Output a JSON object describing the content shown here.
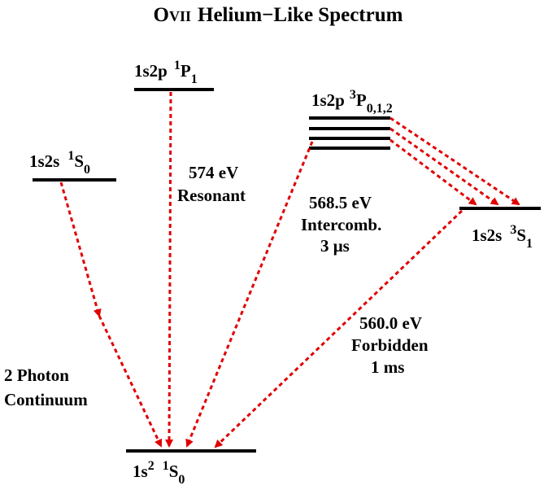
{
  "title": {
    "element": "O",
    "stage": "VII",
    "rest": "Helium−Like Spectrum"
  },
  "levels": [
    {
      "config": "1s2p",
      "mult": "1",
      "term": "P",
      "j": "1"
    },
    {
      "config": "1s2p",
      "mult": "3",
      "term": "P",
      "j": "0,1,2"
    },
    {
      "config": "1s2s",
      "mult": "1",
      "term": "S",
      "j": "0"
    },
    {
      "config": "1s2s",
      "mult": "3",
      "term": "S",
      "j": "1"
    },
    {
      "config": "1s",
      "power": "2",
      "mult": "1",
      "term": "S",
      "j": "0"
    }
  ],
  "transitions": [
    {
      "energy": "574 eV",
      "name": "Resonant"
    },
    {
      "energy": "568.5 eV",
      "name": "Intercomb.",
      "lifetime": "3 μs"
    },
    {
      "energy": "560.0 eV",
      "name": "Forbidden",
      "lifetime": "1 ms"
    },
    {
      "name_line1": "2 Photon",
      "name_line2": "Continuum"
    }
  ]
}
